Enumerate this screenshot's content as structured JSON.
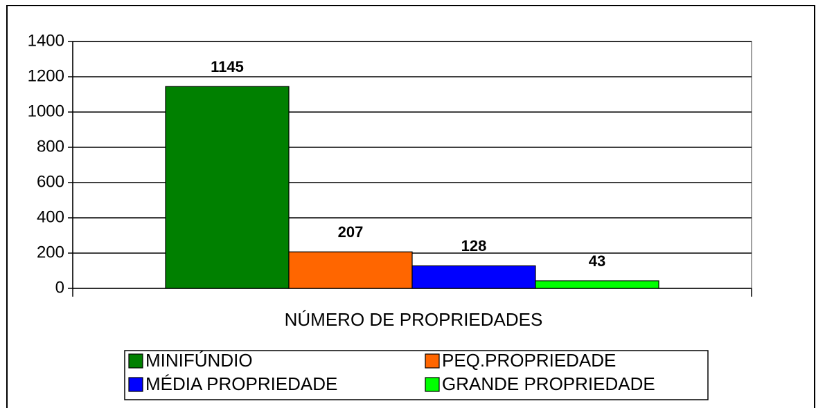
{
  "chart_data": {
    "type": "bar",
    "categories": [
      "NÚMERO DE PROPRIEDADES"
    ],
    "series": [
      {
        "name": "MINIFÚNDIO",
        "color": "#008000",
        "values": [
          1145
        ]
      },
      {
        "name": "PEQ.PROPRIEDADE",
        "color": "#ff6600",
        "values": [
          207
        ]
      },
      {
        "name": "MÉDIA PROPRIEDADE",
        "color": "#0000ff",
        "values": [
          128
        ]
      },
      {
        "name": "GRANDE PROPRIEDADE",
        "color": "#00ff00",
        "values": [
          43
        ]
      }
    ],
    "ylim": [
      0,
      1400
    ],
    "yticks": [
      0,
      200,
      400,
      600,
      800,
      1000,
      1200,
      1400
    ],
    "grid": true,
    "legend": "bottom"
  }
}
